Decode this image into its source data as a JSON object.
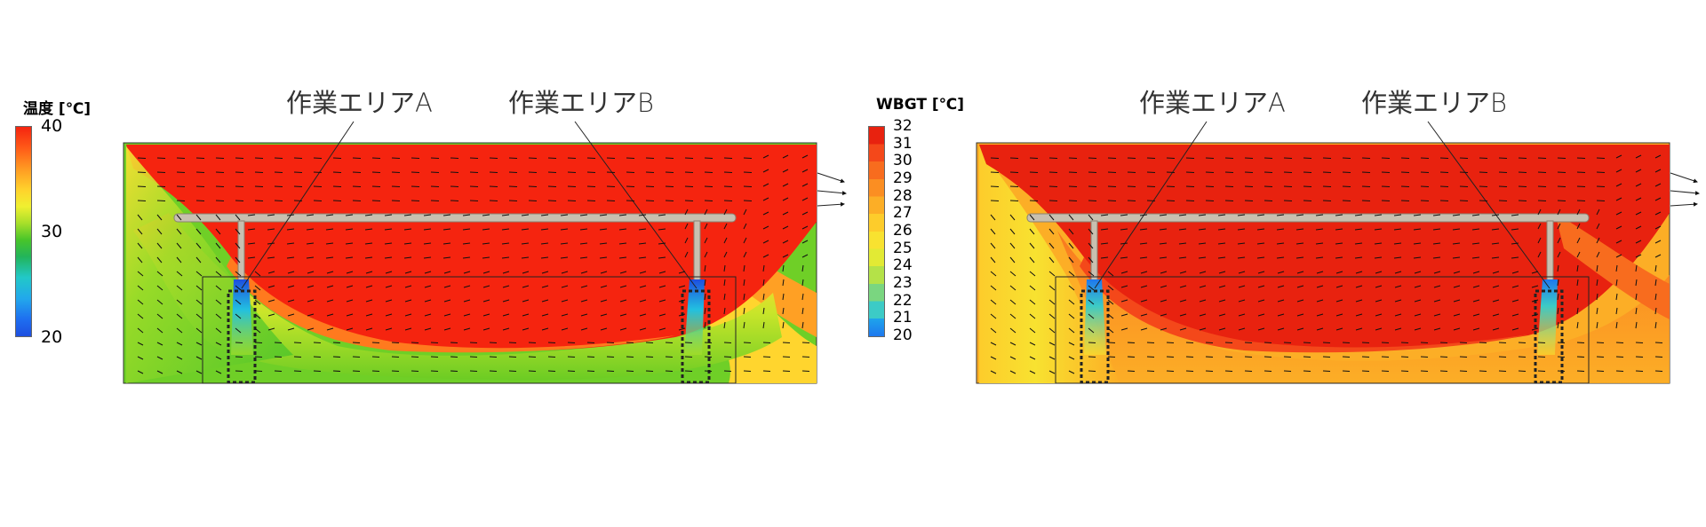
{
  "temperature_panel": {
    "colorbar_title": "温度 [℃]",
    "colorbar_ticks": [
      "40",
      "30",
      "20"
    ],
    "area_a_label": "作業エリアA",
    "area_b_label": "作業エリアB"
  },
  "wbgt_panel": {
    "colorbar_title": "WBGT [℃]",
    "colorbar_ticks": [
      "32",
      "31",
      "30",
      "29",
      "28",
      "27",
      "26",
      "25",
      "24",
      "23",
      "22",
      "21",
      "20"
    ],
    "area_a_label": "作業エリアA",
    "area_b_label": "作業エリアB"
  },
  "colors": {
    "hot": "#f5240f",
    "warm": "#ff6a1a",
    "orange": "#ffa022",
    "yellow": "#ffe033",
    "yellow_green": "#c7e52a",
    "green": "#66cc22",
    "cyan": "#22c0e0",
    "blue": "#1e4fe0",
    "pipe": "#c8c0b0"
  }
}
